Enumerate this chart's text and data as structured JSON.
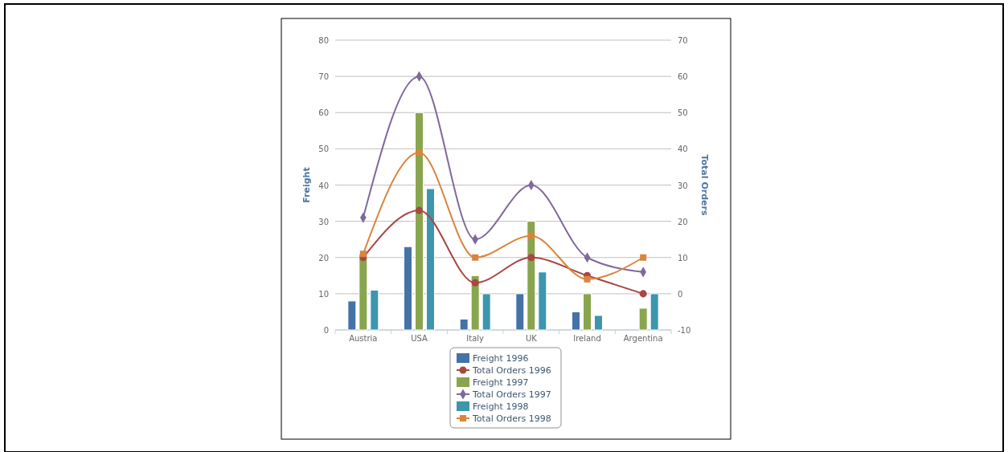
{
  "chart_data": {
    "type": "bar",
    "xlabel": null,
    "ylabel": "Freight",
    "y2label": "Total Orders",
    "categories": [
      "Austria",
      "USA",
      "Italy",
      "UK",
      "Ireland",
      "Argentina"
    ],
    "series": [
      {
        "name": "Freight 1996",
        "color": "#4572a7",
        "values": [
          8,
          23,
          3,
          10,
          5,
          null
        ]
      },
      {
        "name": "Total Orders 1996",
        "type": "line",
        "axis": "y2",
        "marker": "circle",
        "color": "#aa4643",
        "values": [
          10,
          23,
          3,
          10,
          5,
          0
        ]
      },
      {
        "name": "Freight 1997",
        "color": "#89a54e",
        "values": [
          21,
          60,
          15,
          30,
          10,
          6
        ]
      },
      {
        "name": "Total Orders 1997",
        "type": "line",
        "axis": "y2",
        "marker": "diamond",
        "color": "#80699b",
        "values": [
          21,
          60,
          15,
          30,
          10,
          6
        ]
      },
      {
        "name": "Freight 1998",
        "color": "#3d96ae",
        "values": [
          11,
          39,
          10,
          16,
          4,
          10
        ]
      },
      {
        "name": "Total Orders 1998",
        "type": "line",
        "axis": "y2",
        "marker": "square",
        "color": "#db843d",
        "values": [
          11,
          39,
          10,
          16,
          4,
          10
        ]
      }
    ],
    "ylim": [
      0,
      80
    ],
    "yticks": [
      0,
      10,
      20,
      30,
      40,
      50,
      60,
      70,
      80
    ],
    "y2lim": [
      -10,
      70
    ],
    "y2ticks": [
      -10,
      0,
      10,
      20,
      30,
      40,
      50,
      60,
      70
    ],
    "grid": "y",
    "legend": "bottom"
  }
}
